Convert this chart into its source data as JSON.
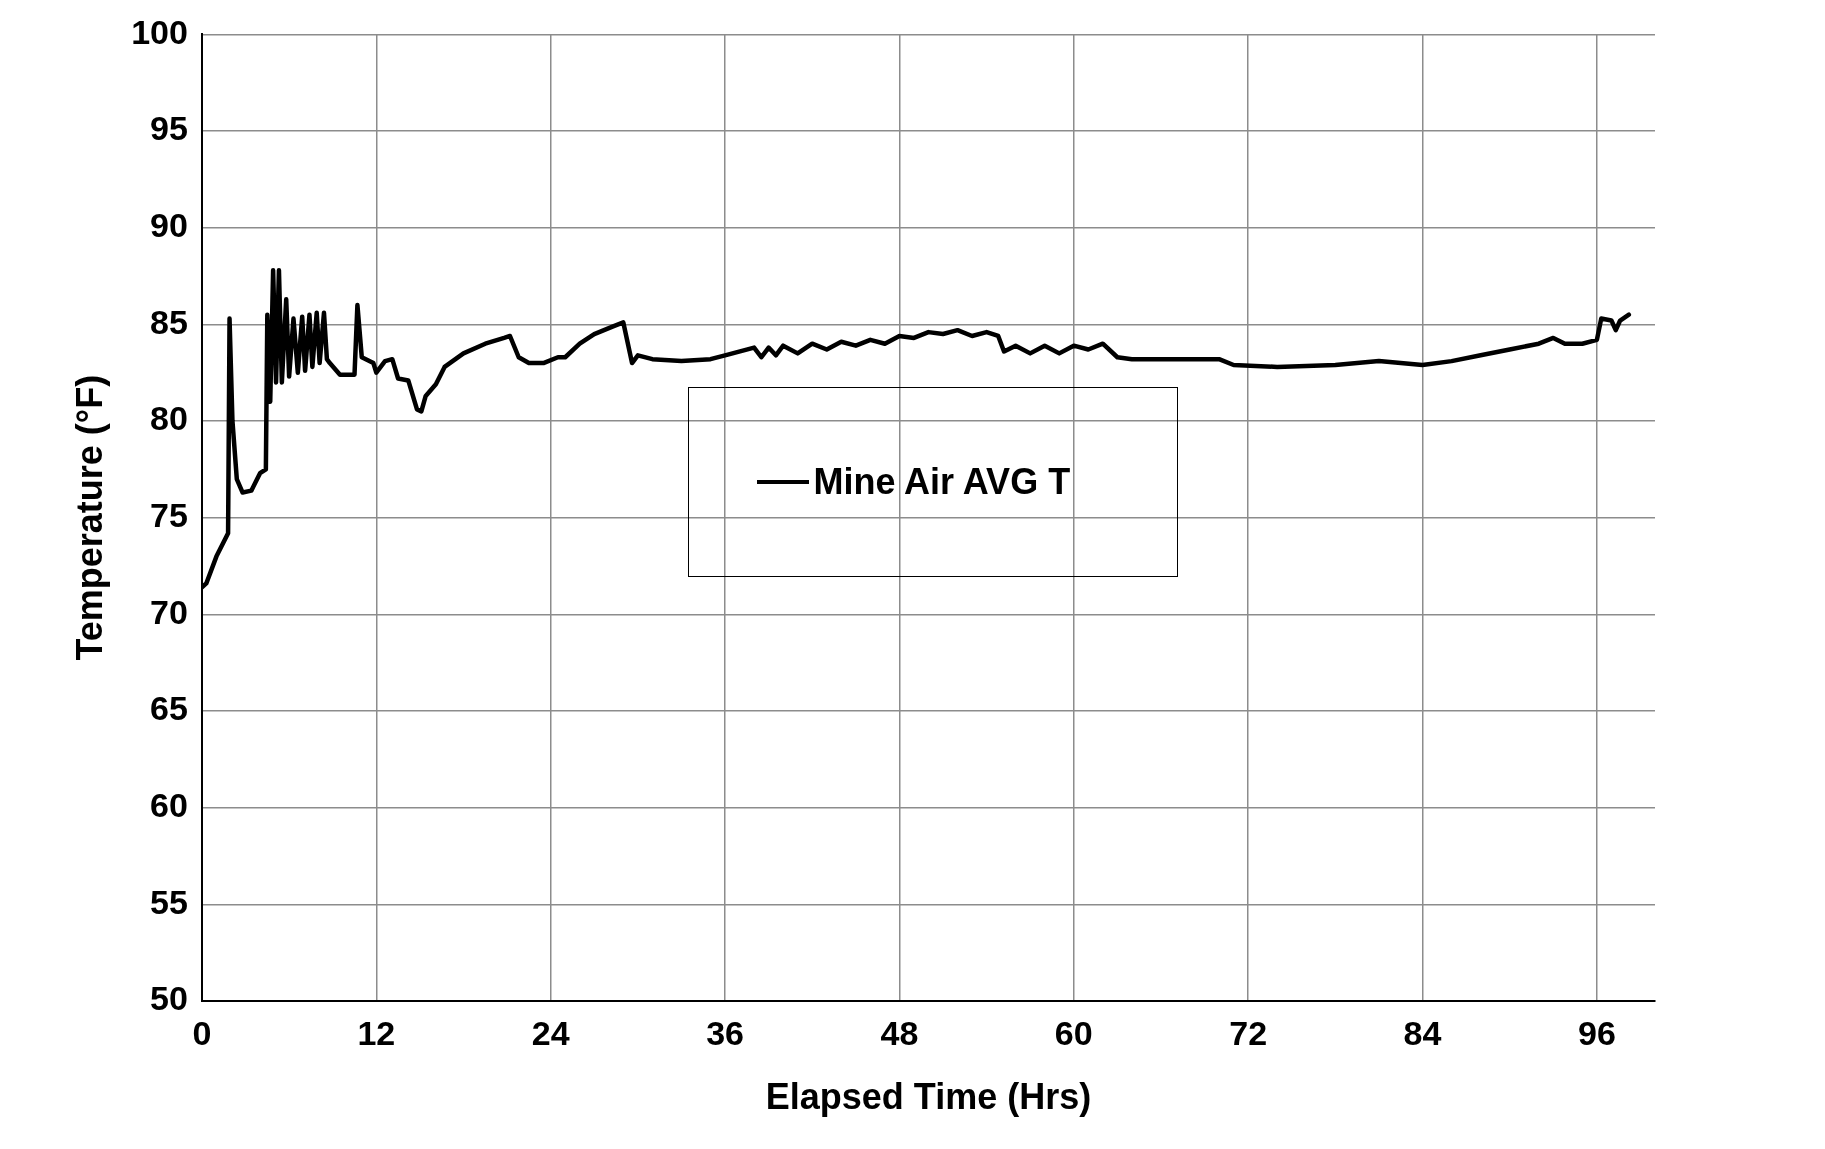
{
  "chart_data": {
    "type": "line",
    "xlabel": "Elapsed Time (Hrs)",
    "ylabel": "Temperature (°F)",
    "xlim": [
      0,
      100
    ],
    "xticks": [
      0,
      12,
      24,
      36,
      48,
      60,
      72,
      84,
      96
    ],
    "ylim": [
      50,
      100
    ],
    "yticks": [
      50,
      55,
      60,
      65,
      70,
      75,
      80,
      85,
      90,
      95,
      100
    ],
    "grid": true,
    "legend": "center",
    "marker": "none",
    "line_style": "solid",
    "series": [
      {
        "name": "Mine Air AVG T",
        "color": "#000000",
        "x": [
          0,
          0.3,
          1,
          1.8,
          1.9,
          2.1,
          2.4,
          2.8,
          3.4,
          4,
          4.4,
          4.5,
          4.7,
          4.9,
          5.1,
          5.3,
          5.5,
          5.8,
          6,
          6.3,
          6.6,
          6.9,
          7.1,
          7.4,
          7.6,
          7.9,
          8.1,
          8.4,
          8.6,
          8.8,
          9.5,
          10.5,
          10.7,
          11,
          11.8,
          12,
          12.6,
          13.1,
          13.5,
          14.2,
          14.8,
          15.1,
          15.4,
          16.1,
          16.7,
          18,
          19.5,
          20.8,
          21.2,
          21.8,
          22.5,
          23.5,
          24.5,
          25,
          26,
          27,
          28.3,
          29,
          29.6,
          30,
          31,
          33,
          35,
          36,
          38,
          38.5,
          39,
          39.5,
          40,
          41,
          42,
          43,
          44,
          45,
          46,
          47,
          48,
          49,
          50,
          51,
          52,
          53,
          54,
          54.8,
          55.2,
          56,
          57,
          58,
          59,
          60,
          61,
          62,
          63,
          64,
          66,
          70,
          71,
          74,
          78,
          81,
          84,
          86,
          88,
          90,
          92,
          93,
          93.8,
          95,
          96,
          96.3,
          97,
          97.3,
          97.6,
          98.2
        ],
        "values": [
          71.4,
          71.6,
          73,
          74.2,
          85.3,
          80,
          77,
          76.3,
          76.4,
          77.3,
          77.5,
          85.5,
          81,
          87.8,
          82,
          87.8,
          82,
          86.3,
          82.3,
          85.3,
          82.5,
          85.4,
          82.6,
          85.5,
          82.8,
          85.6,
          83,
          85.6,
          83.2,
          83,
          82.4,
          82.4,
          86,
          83.3,
          83,
          82.5,
          83.1,
          83.2,
          82.2,
          82.1,
          80.6,
          80.5,
          81.3,
          81.9,
          82.8,
          83.5,
          84,
          84.3,
          84.4,
          83.3,
          83,
          83,
          83.3,
          83.3,
          84,
          84.5,
          84.9,
          85.1,
          83,
          83.4,
          83.2,
          83.1,
          83.2,
          83.4,
          83.8,
          83.3,
          83.8,
          83.4,
          83.9,
          83.5,
          84,
          83.7,
          84.1,
          83.9,
          84.2,
          84,
          84.4,
          84.3,
          84.6,
          84.5,
          84.7,
          84.4,
          84.6,
          84.4,
          83.6,
          83.9,
          83.5,
          83.9,
          83.5,
          83.9,
          83.7,
          84,
          83.3,
          83.2,
          83.2,
          83.2,
          82.9,
          82.8,
          82.9,
          83.1,
          82.9,
          83.1,
          83.4,
          83.7,
          84,
          84.3,
          84,
          84,
          84.2,
          85.3,
          85.2,
          84.7,
          85.2,
          85.5
        ]
      }
    ]
  }
}
